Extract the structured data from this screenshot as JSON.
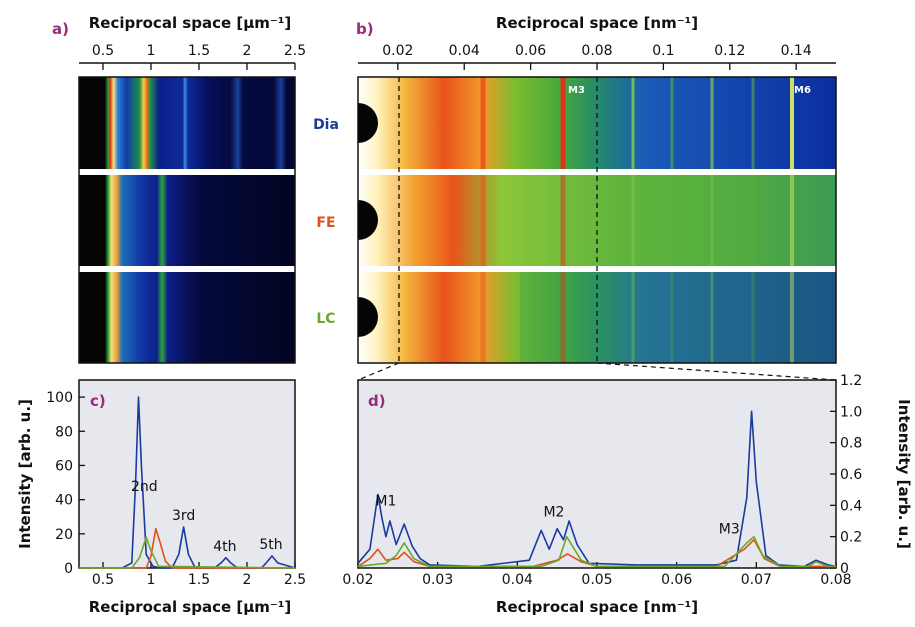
{
  "colors": {
    "panel_label": "#9b2a7a",
    "dia": "#1a3aa0",
    "fe": "#e0501e",
    "lc": "#6aaa2a",
    "plot_bg": "#e6e8ee",
    "image_bg": "#0b1a8e"
  },
  "panels": {
    "a": "a)",
    "b": "b)",
    "c": "c)",
    "d": "d)"
  },
  "samples": {
    "dia": "Dia",
    "fe": "FE",
    "lc": "LC"
  },
  "image_a": {
    "xlabel": "Reciprocal space [µm⁻¹]",
    "xticks": [
      "0.5",
      "1",
      "1.5",
      "2",
      "2.5"
    ]
  },
  "image_b": {
    "xlabel": "Reciprocal space [nm⁻¹]",
    "xticks": [
      "0.02",
      "0.04",
      "0.06",
      "0.08",
      "0.1",
      "0.12",
      "0.14"
    ],
    "marks": [
      "M3",
      "M6"
    ]
  },
  "chart_data": [
    {
      "type": "line",
      "panel": "c",
      "xlabel": "Reciprocal space [µm⁻¹]",
      "ylabel": "Intensity [arb. u.]",
      "xlim": [
        0.25,
        2.5
      ],
      "ylim": [
        0,
        110
      ],
      "xticks": [
        "0.5",
        "1",
        "1.5",
        "2",
        "2.5"
      ],
      "yticks": [
        "0",
        "20",
        "40",
        "60",
        "80",
        "100"
      ],
      "annotations": [
        {
          "text": "2nd",
          "x": 0.93,
          "y": 45
        },
        {
          "text": "3rd",
          "x": 1.34,
          "y": 28
        },
        {
          "text": "4th",
          "x": 1.77,
          "y": 10
        },
        {
          "text": "5th",
          "x": 2.25,
          "y": 11
        }
      ],
      "series": [
        {
          "name": "Dia",
          "color": "#1a3aa0",
          "x": [
            0.25,
            0.7,
            0.8,
            0.84,
            0.87,
            0.9,
            0.95,
            1.02,
            1.1,
            1.22,
            1.29,
            1.34,
            1.39,
            1.46,
            1.66,
            1.73,
            1.78,
            1.83,
            1.9,
            2.15,
            2.2,
            2.26,
            2.32,
            2.5
          ],
          "y": [
            0,
            0,
            3,
            50,
            100,
            60,
            8,
            1,
            0,
            0,
            8,
            24,
            8,
            0,
            0,
            3,
            6,
            3,
            0,
            0,
            3,
            7,
            3,
            0
          ]
        },
        {
          "name": "FE",
          "color": "#e0501e",
          "x": [
            0.25,
            0.95,
            1.0,
            1.05,
            1.1,
            1.15,
            1.22,
            2.5
          ],
          "y": [
            0,
            0,
            7,
            23,
            14,
            4,
            0,
            0
          ]
        },
        {
          "name": "LC",
          "color": "#6aaa2a",
          "x": [
            0.25,
            0.8,
            0.88,
            0.95,
            1.0,
            1.08,
            2.5
          ],
          "y": [
            0,
            0,
            6,
            18,
            10,
            1,
            0
          ]
        }
      ]
    },
    {
      "type": "line",
      "panel": "d",
      "xlabel": "Reciprocal space [nm⁻¹]",
      "ylabel": "Intensity [arb. u.]",
      "xlim": [
        0.02,
        0.08
      ],
      "ylim": [
        0,
        1.2
      ],
      "xticks": [
        "0.02",
        "0.03",
        "0.04",
        "0.05",
        "0.06",
        "0.07",
        "0.08"
      ],
      "yticks": [
        "0",
        "0.2",
        "0.4",
        "0.6",
        "0.8",
        "1.0",
        "1.2"
      ],
      "annotations": [
        {
          "text": "M1",
          "x": 0.0235,
          "y": 0.4
        },
        {
          "text": "M2",
          "x": 0.0446,
          "y": 0.33
        },
        {
          "text": "M3",
          "x": 0.0666,
          "y": 0.22
        }
      ],
      "series": [
        {
          "name": "Dia",
          "color": "#1a3aa0",
          "x": [
            0.02,
            0.0215,
            0.0225,
            0.023,
            0.0235,
            0.024,
            0.0248,
            0.0258,
            0.0268,
            0.0278,
            0.029,
            0.035,
            0.0415,
            0.043,
            0.044,
            0.045,
            0.0458,
            0.0465,
            0.0475,
            0.049,
            0.055,
            0.065,
            0.0675,
            0.0688,
            0.0694,
            0.07,
            0.0712,
            0.0728,
            0.076,
            0.0775,
            0.079,
            0.08
          ],
          "y": [
            0.03,
            0.12,
            0.47,
            0.32,
            0.2,
            0.3,
            0.15,
            0.28,
            0.14,
            0.06,
            0.02,
            0.01,
            0.05,
            0.24,
            0.12,
            0.25,
            0.18,
            0.3,
            0.15,
            0.03,
            0.02,
            0.02,
            0.05,
            0.45,
            1.0,
            0.55,
            0.08,
            0.02,
            0.01,
            0.05,
            0.02,
            0.01
          ]
        },
        {
          "name": "FE",
          "color": "#e0501e",
          "x": [
            0.02,
            0.0215,
            0.0225,
            0.0235,
            0.025,
            0.0258,
            0.027,
            0.029,
            0.042,
            0.045,
            0.0463,
            0.048,
            0.05,
            0.065,
            0.0685,
            0.0697,
            0.071,
            0.073,
            0.08
          ],
          "y": [
            0.01,
            0.06,
            0.12,
            0.05,
            0.06,
            0.1,
            0.04,
            0.01,
            0.01,
            0.05,
            0.09,
            0.04,
            0.01,
            0.01,
            0.12,
            0.18,
            0.06,
            0.01,
            0.01
          ]
        },
        {
          "name": "LC",
          "color": "#6aaa2a",
          "x": [
            0.02,
            0.0235,
            0.0248,
            0.0258,
            0.027,
            0.029,
            0.043,
            0.0452,
            0.0462,
            0.048,
            0.05,
            0.066,
            0.0688,
            0.0697,
            0.0708,
            0.073,
            0.0765,
            0.0775,
            0.079,
            0.08
          ],
          "y": [
            0.01,
            0.03,
            0.08,
            0.16,
            0.06,
            0.01,
            0.01,
            0.05,
            0.2,
            0.05,
            0.01,
            0.01,
            0.16,
            0.2,
            0.08,
            0.01,
            0.01,
            0.04,
            0.01,
            0.01
          ]
        }
      ]
    }
  ]
}
